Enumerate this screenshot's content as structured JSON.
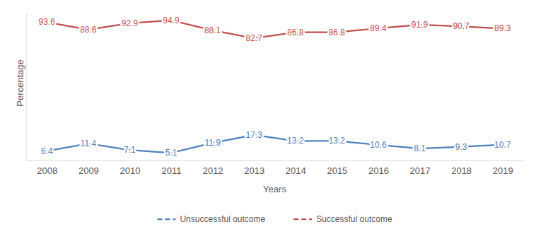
{
  "chart_data": {
    "type": "line",
    "x_label": "Years",
    "y_label": "Percentage",
    "categories": [
      "2008",
      "2009",
      "2010",
      "2011",
      "2012",
      "2013",
      "2014",
      "2015",
      "2016",
      "2017",
      "2018",
      "2019"
    ],
    "series": [
      {
        "name": "Unsuccessful outcome",
        "color": "#4f81bd",
        "values": [
          6.4,
          11.4,
          7.1,
          5.1,
          11.9,
          17.3,
          13.2,
          13.2,
          10.6,
          8.1,
          9.3,
          10.7
        ]
      },
      {
        "name": "Successful outcome",
        "color": "#c0504d",
        "values": [
          93.6,
          88.6,
          92.9,
          94.9,
          88.1,
          82.7,
          86.8,
          86.8,
          89.4,
          91.9,
          90.7,
          89.3
        ]
      }
    ],
    "ylim": [
      0,
      100
    ],
    "grid": false,
    "legend": "bottom",
    "data_labels": true,
    "tick_labels": "x"
  }
}
